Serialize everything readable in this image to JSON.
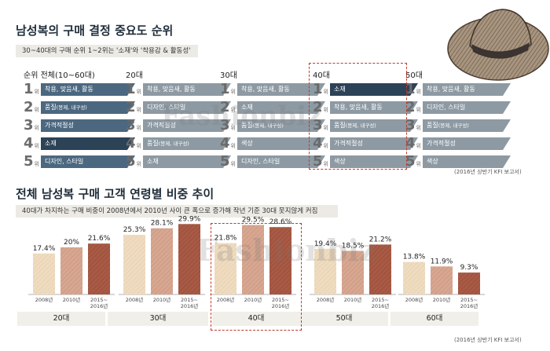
{
  "top": {
    "title": "남성복의 구매 결정 중요도 순위",
    "subtitle": "30~40대의 구매 순위 1~2위는 '소재'와 '착용감 & 활동성'",
    "note": "(2016년 상반기 KFI 보고서)",
    "rank_suffix": "위",
    "columns": [
      {
        "header": "순위 전체(10~60대)",
        "items": [
          {
            "label": "착용, 맞음새, 활동",
            "paren": ""
          },
          {
            "label": "품질",
            "paren": "(봉제, 내구성)"
          },
          {
            "label": "가격적절성",
            "paren": ""
          },
          {
            "label": "소재",
            "paren": ""
          },
          {
            "label": "디자인, 스타일",
            "paren": ""
          }
        ]
      },
      {
        "header": "20대",
        "items": [
          {
            "label": "착용, 맞음새, 활동",
            "paren": ""
          },
          {
            "label": "디자인, 스타일",
            "paren": ""
          },
          {
            "label": "가격적절성",
            "paren": ""
          },
          {
            "label": "품질",
            "paren": "(봉제, 내구성)"
          },
          {
            "label": "소재",
            "paren": ""
          }
        ]
      },
      {
        "header": "30대",
        "items": [
          {
            "label": "착용, 맞음새, 활동",
            "paren": ""
          },
          {
            "label": "소재",
            "paren": ""
          },
          {
            "label": "품질",
            "paren": "(봉제, 내구성)"
          },
          {
            "label": "색상",
            "paren": ""
          },
          {
            "label": "디자인, 스타일",
            "paren": ""
          }
        ]
      },
      {
        "header": "40대",
        "items": [
          {
            "label": "소재",
            "paren": ""
          },
          {
            "label": "착용, 맞음새, 활동",
            "paren": ""
          },
          {
            "label": "품질",
            "paren": "(봉제, 내구성)"
          },
          {
            "label": "가격적절성",
            "paren": ""
          },
          {
            "label": "색상",
            "paren": ""
          }
        ]
      },
      {
        "header": "50대",
        "items": [
          {
            "label": "착용, 맞음새, 활동",
            "paren": ""
          },
          {
            "label": "디자인, 스타일",
            "paren": ""
          },
          {
            "label": "품질",
            "paren": "(봉제, 내구성)"
          },
          {
            "label": "가격적절성",
            "paren": ""
          },
          {
            "label": "색상",
            "paren": ""
          }
        ]
      }
    ]
  },
  "bottom": {
    "title": "전체 남성복 구매 고객 연령별 비중 추이",
    "subtitle": "40대가 차지하는 구매 비중이 2008년에서 2010년 사이 큰 폭으로 증가해 작년 기준 30대 못지않게 커짐",
    "note": "(2016년 상반기 KFI 보고서)"
  },
  "watermark": "Fashionbiz",
  "colors": {
    "dark_navy": "#2c4257",
    "mid_blue": "#4c6880",
    "light_blue": "#7f95a6",
    "rank_gray": "#8d9aa3",
    "bar_2008": "#efdcc0",
    "bar_2010": "#d7a791",
    "bar_2015": "#a85a45",
    "highlight": "#c0392b"
  },
  "chart_data": {
    "type": "bar",
    "title": "전체 남성복 구매 고객 연령별 비중 추이",
    "xlabel": "",
    "ylabel": "",
    "categories": [
      "20대",
      "30대",
      "40대",
      "50대",
      "60대"
    ],
    "series": [
      {
        "name": "2008년",
        "values": [
          17.4,
          25.3,
          21.8,
          19.4,
          13.8
        ]
      },
      {
        "name": "2010년",
        "values": [
          20,
          28.1,
          29.5,
          18.5,
          11.9
        ]
      },
      {
        "name": "2015~2016년",
        "values": [
          21.6,
          29.9,
          28.6,
          21.2,
          9.3
        ]
      }
    ],
    "value_labels": [
      [
        "17.4%",
        "20%",
        "21.6%"
      ],
      [
        "25.3%",
        "28.1%",
        "29.9%"
      ],
      [
        "21.8%",
        "29.5%",
        "28.6%"
      ],
      [
        "19.4%",
        "18.5%",
        "21.2%"
      ],
      [
        "13.8%",
        "11.9%",
        "9.3%"
      ]
    ],
    "x_tick_labels": [
      "2008년",
      "2010년",
      "2015~\n2016년"
    ],
    "highlight_category": "40대",
    "ylim": [
      0,
      35
    ],
    "grid": false,
    "legend": "none"
  }
}
